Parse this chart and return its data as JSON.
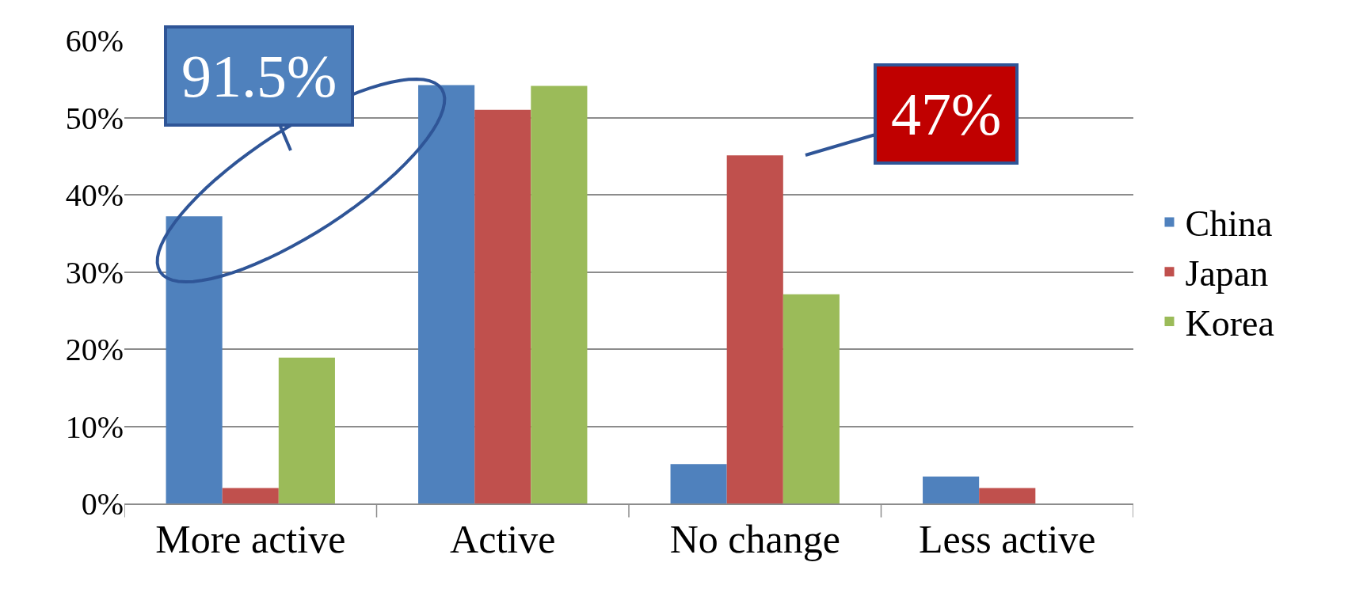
{
  "chart_data": {
    "type": "bar",
    "categories": [
      "More active",
      "Active",
      "No change",
      "Less active"
    ],
    "series": [
      {
        "name": "China",
        "color": "#4f81bd",
        "values": [
          37.2,
          54.2,
          5.1,
          3.5
        ]
      },
      {
        "name": "Japan",
        "color": "#c0504d",
        "values": [
          2.0,
          51.0,
          45.1,
          2.0
        ]
      },
      {
        "name": "Korea",
        "color": "#9bbb59",
        "values": [
          18.9,
          54.1,
          27.1,
          null
        ]
      }
    ],
    "ylim": [
      0,
      60
    ],
    "yticks": [
      {
        "value": 0,
        "label": "0%"
      },
      {
        "value": 10,
        "label": "10%"
      },
      {
        "value": 20,
        "label": "20%"
      },
      {
        "value": 30,
        "label": "30%"
      },
      {
        "value": 40,
        "label": "40%"
      },
      {
        "value": 50,
        "label": "50%"
      },
      {
        "value": 60,
        "label": "60%"
      }
    ],
    "grid": "y",
    "legend": "right",
    "annotations": [
      "91.5%",
      "47%"
    ]
  }
}
